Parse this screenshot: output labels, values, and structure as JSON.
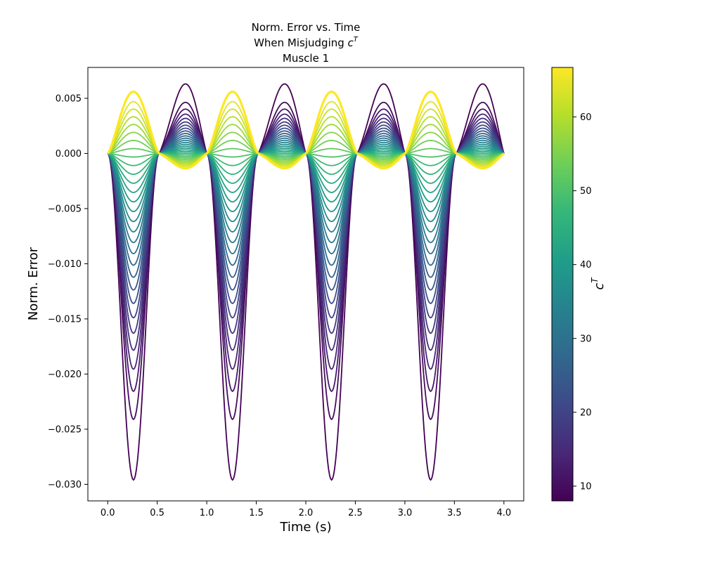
{
  "chart_data": {
    "type": "line",
    "title_lines": [
      "Norm. Error vs. Time",
      "When Misjudging ",
      "Muscle 1"
    ],
    "title_symbol": {
      "base": "c",
      "sup": "T"
    },
    "xlabel": "Time (s)",
    "ylabel": "Norm. Error",
    "xlim": [
      -0.2,
      4.2
    ],
    "ylim": [
      -0.0315,
      0.0078
    ],
    "xticks": [
      0.0,
      0.5,
      1.0,
      1.5,
      2.0,
      2.5,
      3.0,
      3.5,
      4.0
    ],
    "xtick_labels": [
      "0.0",
      "0.5",
      "1.0",
      "1.5",
      "2.0",
      "2.5",
      "3.0",
      "3.5",
      "4.0"
    ],
    "yticks": [
      0.005,
      0.0,
      -0.005,
      -0.01,
      -0.015,
      -0.02,
      -0.025,
      -0.03
    ],
    "ytick_labels": [
      "0.005",
      "0.000",
      "−0.005",
      "−0.010",
      "−0.015",
      "−0.020",
      "−0.025",
      "−0.030"
    ],
    "grid": false,
    "period_s": 1.0,
    "time_range": [
      0.0,
      4.0
    ],
    "colormap": "viridis",
    "colorbar": {
      "label": {
        "base": "c",
        "sup": "T"
      },
      "range": [
        8.0,
        66.7
      ],
      "ticks": [
        10,
        20,
        30,
        40,
        50,
        60
      ],
      "tick_labels": [
        "10",
        "20",
        "30",
        "40",
        "50",
        "60"
      ]
    },
    "series_cT": [
      8,
      10,
      12,
      14,
      16,
      18,
      20,
      22,
      24,
      26,
      28,
      30,
      32,
      34,
      36,
      38,
      40,
      42,
      44,
      46,
      48,
      50,
      52,
      54,
      56,
      58,
      60,
      62,
      64,
      66.7
    ],
    "envelope": {
      "min_cT_series": {
        "trough_t": 0.26,
        "trough_value": -0.0296,
        "peak_t": 0.68,
        "peak_value": 0.0061
      },
      "max_cT_series": {
        "peak_t": 0.26,
        "peak_value": 0.0056,
        "dip_t": 0.65,
        "dip_value": -0.0013
      }
    },
    "colors": [
      "#440154",
      "#482878",
      "#3e4989",
      "#31688e",
      "#26828e",
      "#1f9e89",
      "#35b779",
      "#6ece58",
      "#b5de2b",
      "#fde725"
    ]
  }
}
